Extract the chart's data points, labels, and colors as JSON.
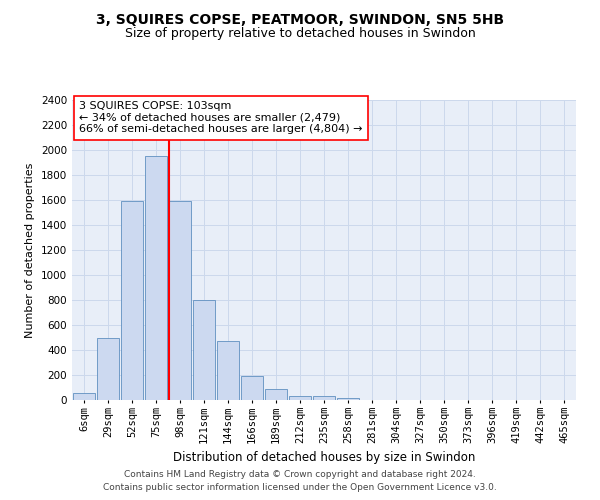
{
  "title": "3, SQUIRES COPSE, PEATMOOR, SWINDON, SN5 5HB",
  "subtitle": "Size of property relative to detached houses in Swindon",
  "xlabel": "Distribution of detached houses by size in Swindon",
  "ylabel": "Number of detached properties",
  "categories": [
    "6sqm",
    "29sqm",
    "52sqm",
    "75sqm",
    "98sqm",
    "121sqm",
    "144sqm",
    "166sqm",
    "189sqm",
    "212sqm",
    "235sqm",
    "258sqm",
    "281sqm",
    "304sqm",
    "327sqm",
    "350sqm",
    "373sqm",
    "396sqm",
    "419sqm",
    "442sqm",
    "465sqm"
  ],
  "values": [
    55,
    500,
    1590,
    1950,
    1590,
    800,
    470,
    195,
    90,
    35,
    30,
    20,
    0,
    0,
    0,
    0,
    0,
    0,
    0,
    0,
    0
  ],
  "bar_color": "#ccd9f0",
  "bar_edge_color": "#6090c0",
  "vline_color": "red",
  "vline_x_index": 3.55,
  "annotation_text": "3 SQUIRES COPSE: 103sqm\n← 34% of detached houses are smaller (2,479)\n66% of semi-detached houses are larger (4,804) →",
  "annotation_box_color": "white",
  "annotation_box_edge_color": "red",
  "ylim": [
    0,
    2400
  ],
  "yticks": [
    0,
    200,
    400,
    600,
    800,
    1000,
    1200,
    1400,
    1600,
    1800,
    2000,
    2200,
    2400
  ],
  "grid_color": "#ccd8ec",
  "background_color": "#e8eef8",
  "footer_line1": "Contains HM Land Registry data © Crown copyright and database right 2024.",
  "footer_line2": "Contains public sector information licensed under the Open Government Licence v3.0.",
  "title_fontsize": 10,
  "subtitle_fontsize": 9,
  "xlabel_fontsize": 8.5,
  "ylabel_fontsize": 8,
  "tick_fontsize": 7.5,
  "annotation_fontsize": 8,
  "footer_fontsize": 6.5
}
